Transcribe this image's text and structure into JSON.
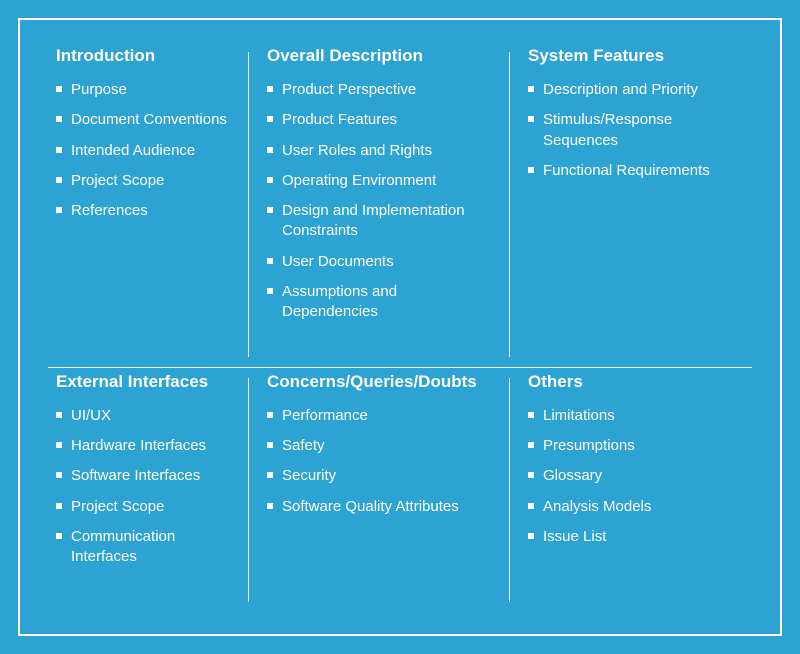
{
  "background_color": "#2ca3d2",
  "border_color": "#ffffff",
  "text_color": "#ffffff",
  "title_fontsize": 17,
  "item_fontsize": 15,
  "bullet_color": "#ffffff",
  "bullet_size": 6,
  "layout": {
    "rows": 2,
    "cols": 3
  },
  "sections": [
    {
      "title": "Introduction",
      "items": [
        "Purpose",
        "Document Conventions",
        "Intended Audience",
        "Project Scope",
        "References"
      ]
    },
    {
      "title": "Overall Description",
      "items": [
        "Product Perspective",
        "Product Features",
        "User Roles and Rights",
        "Operating Environment",
        "Design and Implementation Constraints",
        "User Documents",
        "Assumptions and Dependencies"
      ]
    },
    {
      "title": "System Features",
      "items": [
        "Description and Priority",
        "Stimulus/Response Sequences",
        "Functional Requirements"
      ]
    },
    {
      "title": "External Interfaces",
      "items": [
        "UI/UX",
        "Hardware Interfaces",
        "Software Interfaces",
        "Project Scope",
        "Communication Interfaces"
      ]
    },
    {
      "title": "Concerns/Queries/Doubts",
      "items": [
        "Performance",
        "Safety",
        "Security",
        "Software Quality Attributes"
      ]
    },
    {
      "title": "Others",
      "items": [
        "Limitations",
        "Presumptions",
        "Glossary",
        "Analysis Models",
        "Issue List"
      ]
    }
  ]
}
